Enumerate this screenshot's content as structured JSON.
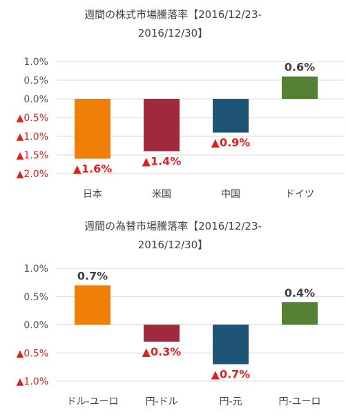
{
  "chart_data": [
    {
      "type": "bar",
      "title": "週間の株式市場騰落率【2016/12/23-2016/12/30】",
      "title_line1": "週間の株式市場騰落率【2016/12/23-",
      "title_line2": "2016/12/30】",
      "categories": [
        "日本",
        "米国",
        "中国",
        "ドイツ"
      ],
      "values": [
        -1.6,
        -1.4,
        -0.9,
        0.6
      ],
      "value_labels": [
        "▲1.6%",
        "▲1.4%",
        "▲0.9%",
        "0.6%"
      ],
      "colors": [
        "#f07f09",
        "#9e2a3c",
        "#1f5477",
        "#548235"
      ],
      "ylim": [
        -2.0,
        1.0
      ],
      "yticks": [
        1.0,
        0.5,
        0.0,
        -0.5,
        -1.0,
        -1.5,
        -2.0
      ],
      "ytick_labels": [
        "1.0%",
        "0.5%",
        "0.0%",
        "▲0.5%",
        "▲1.0%",
        "▲1.5%",
        "▲2.0%"
      ],
      "grid": true,
      "xlabel": "",
      "ylabel": ""
    },
    {
      "type": "bar",
      "title": "週間の為替市場騰落率【2016/12/23-2016/12/30】",
      "title_line1": "週間の為替市場騰落率【2016/12/23-",
      "title_line2": "2016/12/30】",
      "categories": [
        "ドル-ユーロ",
        "円-ドル",
        "円-元",
        "円-ユーロ"
      ],
      "values": [
        0.7,
        -0.3,
        -0.7,
        0.4
      ],
      "value_labels": [
        "0.7%",
        "▲0.3%",
        "▲0.7%",
        "0.4%"
      ],
      "colors": [
        "#f07f09",
        "#9e2a3c",
        "#1f5477",
        "#548235"
      ],
      "ylim": [
        -1.0,
        1.0
      ],
      "yticks": [
        1.0,
        0.5,
        0.0,
        -0.5,
        -1.0
      ],
      "ytick_labels": [
        "1.0%",
        "0.5%",
        "0.0%",
        "▲0.5%",
        "▲1.0%"
      ],
      "grid": true,
      "xlabel": "",
      "ylabel": ""
    }
  ],
  "colors": {
    "positive_tick": "#595959",
    "negative_tick": "#e02020",
    "positive_label": "#404040",
    "negative_label": "#e02020",
    "grid": "#d9d9d9"
  }
}
